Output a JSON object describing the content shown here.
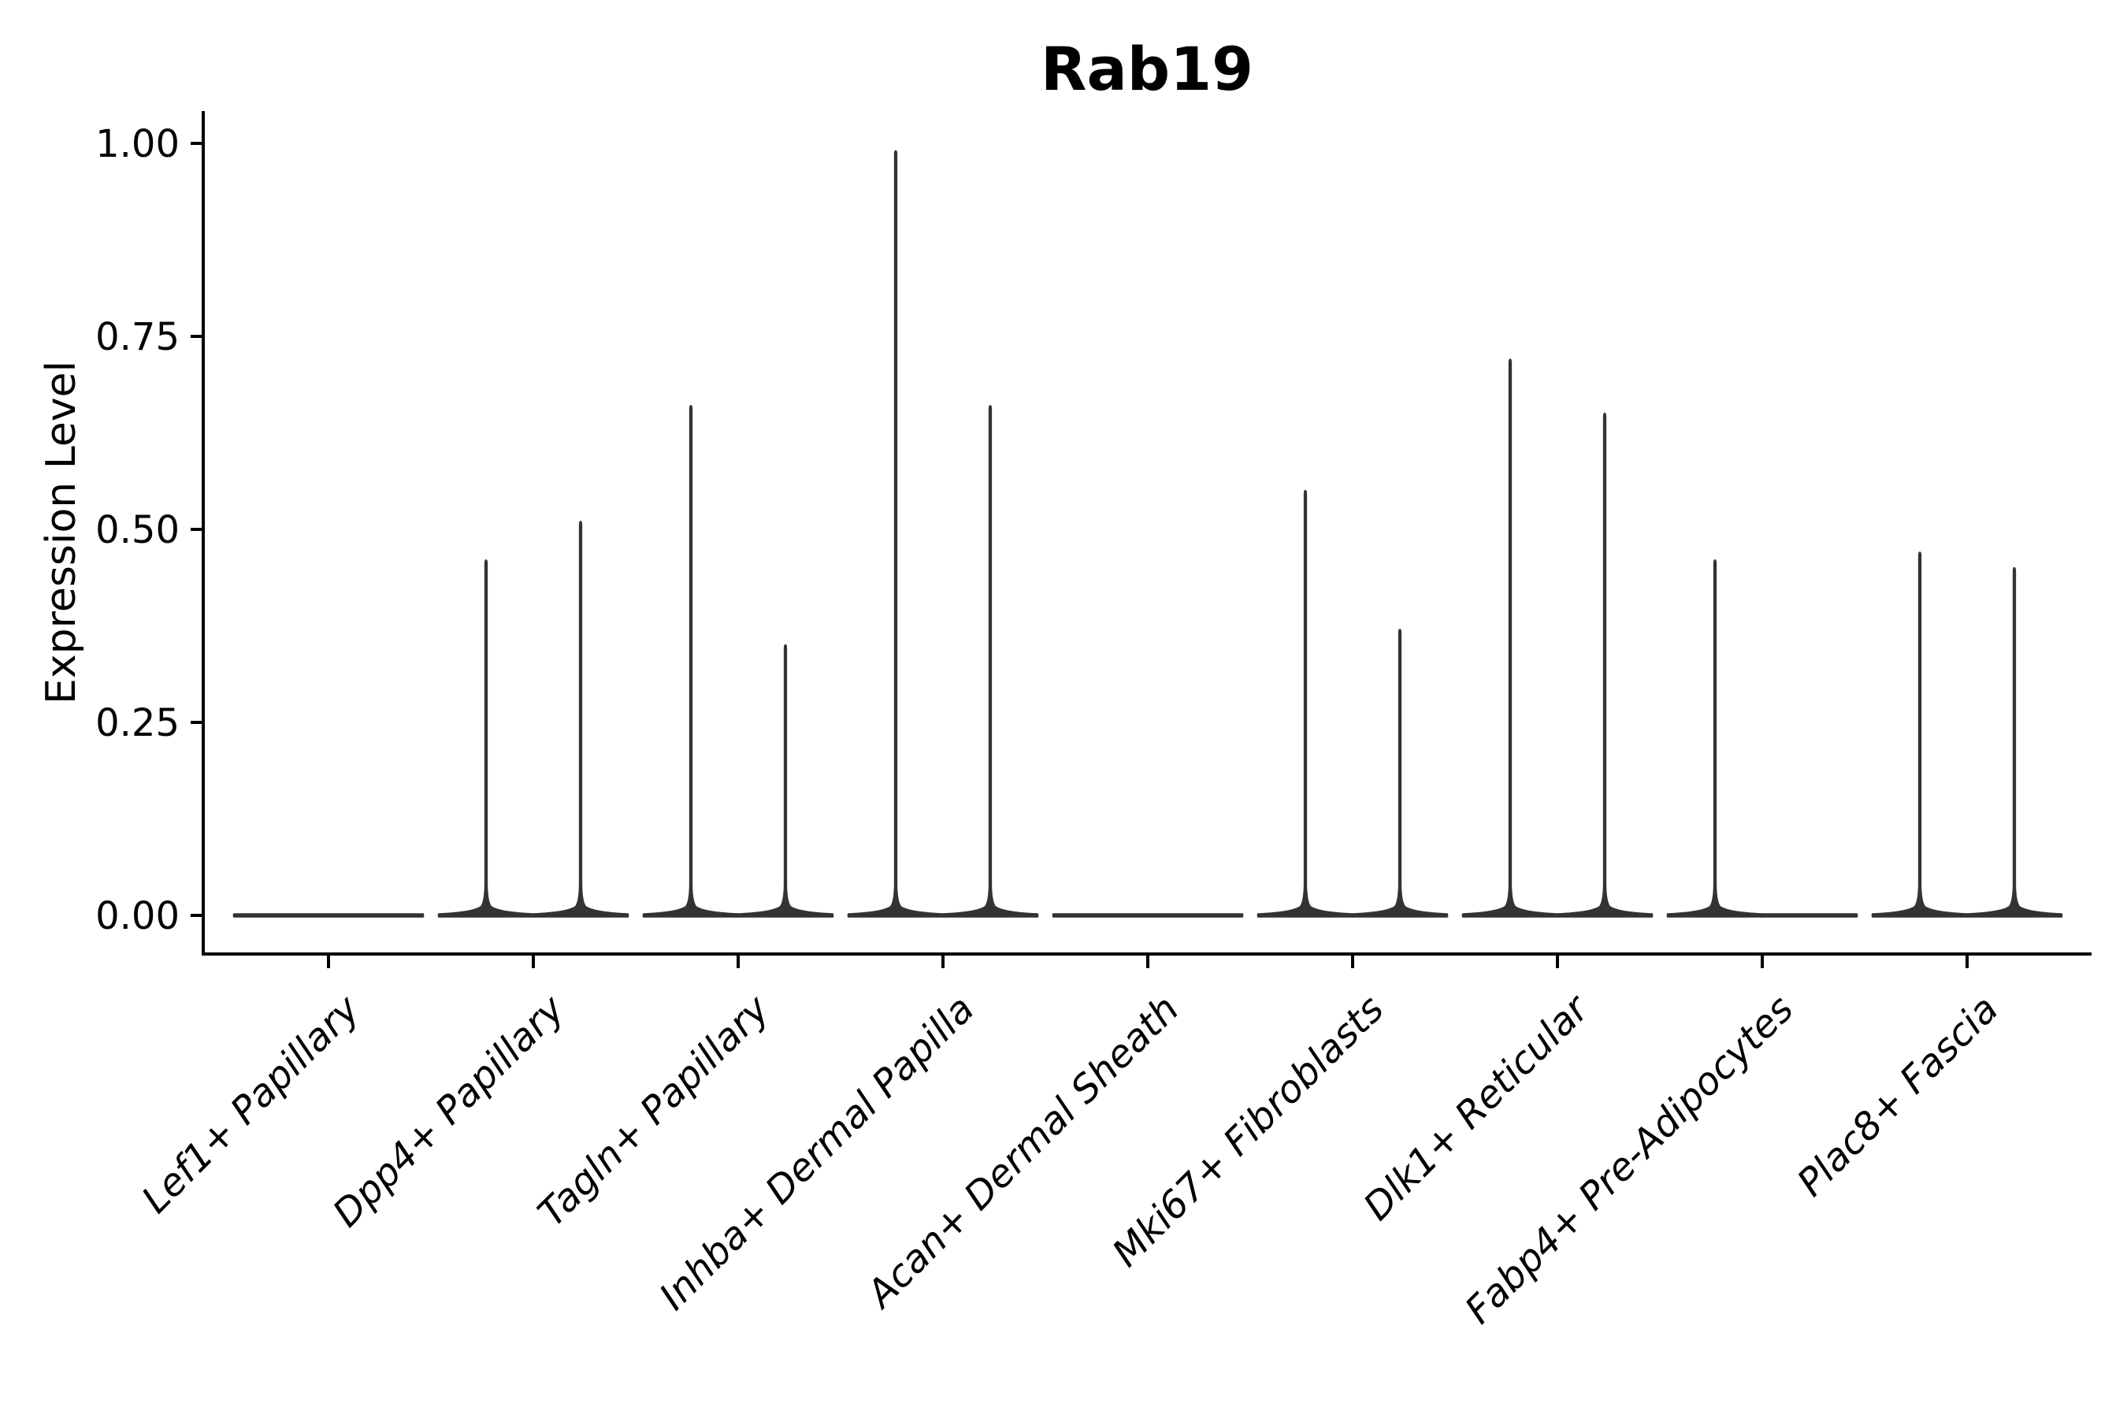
{
  "title": "Rab19",
  "axes": {
    "y_label": "Expression Level",
    "y_tick_labels": [
      "0.00",
      "0.25",
      "0.50",
      "0.75",
      "1.00"
    ],
    "x_categories": [
      "Lef1+ Papillary",
      "Dpp4+ Papillary",
      "Tagln+ Papillary",
      "Inhba+ Dermal Papilla",
      "Acan+ Dermal Sheath",
      "Mki67+ Fibroblasts",
      "Dlk1+ Reticular",
      "Fabp4+ Pre-Adipocytes",
      "Plac8+ Fascia"
    ]
  },
  "chart_data": {
    "type": "violin",
    "title": "Rab19",
    "xlabel": "",
    "ylabel": "Expression Level",
    "ylim": [
      -0.05,
      1.05
    ],
    "grid": false,
    "legend_position": "none",
    "violins_per_category": 2,
    "categories": [
      "Lef1+ Papillary",
      "Dpp4+ Papillary",
      "Tagln+ Papillary",
      "Inhba+ Dermal Papilla",
      "Acan+ Dermal Sheath",
      "Mki67+ Fibroblasts",
      "Dlk1+ Reticular",
      "Fabp4+ Pre-Adipocytes",
      "Plac8+ Fascia"
    ],
    "y_ticks": [
      {
        "label": "0.00",
        "value": 0.0
      },
      {
        "label": "0.25",
        "value": 0.25
      },
      {
        "label": "0.50",
        "value": 0.5
      },
      {
        "label": "0.75",
        "value": 0.75
      },
      {
        "label": "1.00",
        "value": 1.0
      }
    ],
    "series": [
      {
        "name": "left-violin",
        "peak_values": [
          0,
          0.46,
          0.66,
          0.99,
          0,
          0.55,
          0.72,
          0.46,
          0.47
        ]
      },
      {
        "name": "right-violin",
        "peak_values": [
          0,
          0.51,
          0.35,
          0.66,
          0,
          0.37,
          0.65,
          0,
          0.45
        ]
      }
    ],
    "description": "Needle-thin violins: nearly all density at expression 0 (wide flat base), thin spike up to the peak value where cells express Rab19.",
    "colors": {
      "violin": "#333333",
      "axis": "#000000",
      "text": "#000000",
      "background": "#ffffff"
    }
  }
}
